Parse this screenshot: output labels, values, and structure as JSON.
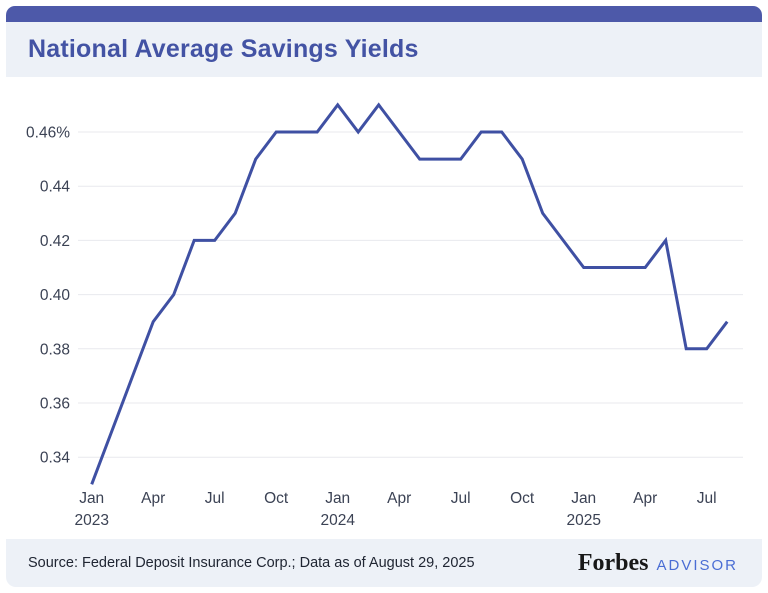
{
  "header": {
    "title": "National Average Savings Yields"
  },
  "footer": {
    "source": "Source: Federal Deposit Insurance Corp.; Data as of August 29, 2025",
    "brand": {
      "name": "Forbes",
      "suffix": "ADVISOR"
    }
  },
  "colors": {
    "accent_bar": "#4d59a9",
    "title_text": "#4353a4",
    "band_bg": "#edf1f7",
    "chart_bg": "#ffffff",
    "grid": "#e8e9ee",
    "tick_text": "#3b4254",
    "line": "#3f50a3",
    "source_text": "#202633",
    "forbes_black": "#181818",
    "advisor_blue": "#4a6dd4"
  },
  "chart_data": {
    "type": "line",
    "title": "National Average Savings Yields",
    "unit": "%",
    "x": [
      "Jan 2023",
      "Feb 2023",
      "Mar 2023",
      "Apr 2023",
      "May 2023",
      "Jun 2023",
      "Jul 2023",
      "Aug 2023",
      "Sep 2023",
      "Oct 2023",
      "Nov 2023",
      "Dec 2023",
      "Jan 2024",
      "Feb 2024",
      "Mar 2024",
      "Apr 2024",
      "May 2024",
      "Jun 2024",
      "Jul 2024",
      "Aug 2024",
      "Sep 2024",
      "Oct 2024",
      "Nov 2024",
      "Dec 2024",
      "Jan 2025",
      "Feb 2025",
      "Mar 2025",
      "Apr 2025",
      "May 2025",
      "Jun 2025",
      "Jul 2025",
      "Aug 2025"
    ],
    "values": [
      0.33,
      0.35,
      0.37,
      0.39,
      0.4,
      0.42,
      0.42,
      0.43,
      0.45,
      0.46,
      0.46,
      0.46,
      0.47,
      0.46,
      0.47,
      0.46,
      0.45,
      0.45,
      0.45,
      0.46,
      0.46,
      0.45,
      0.43,
      0.42,
      0.41,
      0.41,
      0.41,
      0.41,
      0.42,
      0.38,
      0.38,
      0.39
    ],
    "ylim": [
      0.33,
      0.475
    ],
    "grid": "horizontal",
    "legend": "none",
    "line_color": "#3f50a3",
    "yticks": [
      {
        "value": 0.46,
        "label": "0.46%"
      },
      {
        "value": 0.44,
        "label": "0.44"
      },
      {
        "value": 0.42,
        "label": "0.42"
      },
      {
        "value": 0.4,
        "label": "0.40"
      },
      {
        "value": 0.38,
        "label": "0.38"
      },
      {
        "value": 0.36,
        "label": "0.36"
      },
      {
        "value": 0.34,
        "label": "0.34"
      }
    ],
    "xticks": [
      {
        "index": 0,
        "label": "Jan",
        "year": "2023"
      },
      {
        "index": 3,
        "label": "Apr"
      },
      {
        "index": 6,
        "label": "Jul"
      },
      {
        "index": 9,
        "label": "Oct"
      },
      {
        "index": 12,
        "label": "Jan",
        "year": "2024"
      },
      {
        "index": 15,
        "label": "Apr"
      },
      {
        "index": 18,
        "label": "Jul"
      },
      {
        "index": 21,
        "label": "Oct"
      },
      {
        "index": 24,
        "label": "Jan",
        "year": "2025"
      },
      {
        "index": 27,
        "label": "Apr"
      },
      {
        "index": 30,
        "label": "Jul"
      }
    ]
  }
}
